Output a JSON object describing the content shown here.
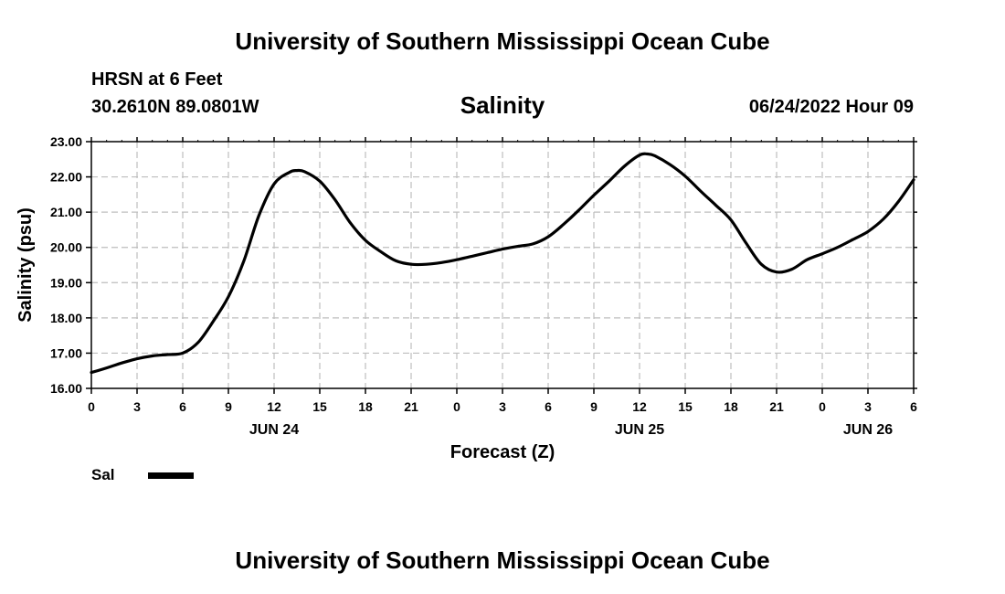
{
  "header": {
    "title": "University of Southern Mississippi Ocean Cube",
    "station": "HRSN at 6 Feet",
    "coords": "30.2610N  89.0801W",
    "chart_title": "Salinity",
    "run_time": "06/24/2022 Hour 09"
  },
  "footer": {
    "title": "University of Southern Mississippi Ocean Cube"
  },
  "legend": {
    "label": "Sal"
  },
  "chart_data": {
    "type": "line",
    "title": "Salinity",
    "xlabel": "Forecast (Z)",
    "ylabel": "Salinity (psu)",
    "ylim": [
      16.0,
      23.0
    ],
    "xlim": [
      0,
      54
    ],
    "x_unit": "hours from 06/24/2022 00Z",
    "x_ticks": [
      0,
      3,
      6,
      9,
      12,
      15,
      18,
      21,
      24,
      27,
      30,
      33,
      36,
      39,
      42,
      45,
      48,
      51,
      54
    ],
    "x_tick_labels": [
      "0",
      "3",
      "6",
      "9",
      "12",
      "15",
      "18",
      "21",
      "0",
      "3",
      "6",
      "9",
      "12",
      "15",
      "18",
      "21",
      "0",
      "3",
      "6"
    ],
    "y_ticks": [
      16.0,
      17.0,
      18.0,
      19.0,
      20.0,
      21.0,
      22.0,
      23.0
    ],
    "y_tick_labels": [
      "16.00",
      "17.00",
      "18.00",
      "19.00",
      "20.00",
      "21.00",
      "22.00",
      "23.00"
    ],
    "day_labels": [
      {
        "x": 12,
        "label": "JUN 24"
      },
      {
        "x": 36,
        "label": "JUN 25"
      },
      {
        "x": 51,
        "label": "JUN 26"
      }
    ],
    "grid": true,
    "line_color": "#000000",
    "series": [
      {
        "name": "Sal",
        "x": [
          0,
          1,
          2,
          3,
          4,
          5,
          6,
          7,
          8,
          9,
          10,
          11,
          12,
          13,
          13.5,
          14,
          15,
          16,
          17,
          18,
          19,
          20,
          21,
          22,
          23,
          24,
          25,
          26,
          27,
          28,
          29,
          30,
          31,
          32,
          33,
          34,
          35,
          36,
          36.5,
          37,
          38,
          39,
          40,
          41,
          42,
          43,
          44,
          45,
          46,
          47,
          48,
          49,
          50,
          51,
          52,
          53,
          54
        ],
        "y": [
          16.45,
          16.58,
          16.72,
          16.84,
          16.92,
          16.96,
          17.0,
          17.3,
          17.9,
          18.6,
          19.6,
          20.9,
          21.8,
          22.13,
          22.18,
          22.15,
          21.88,
          21.35,
          20.7,
          20.2,
          19.88,
          19.62,
          19.52,
          19.52,
          19.57,
          19.65,
          19.75,
          19.85,
          19.95,
          20.03,
          20.1,
          20.3,
          20.65,
          21.05,
          21.48,
          21.88,
          22.3,
          22.62,
          22.65,
          22.6,
          22.35,
          22.02,
          21.6,
          21.2,
          20.78,
          20.12,
          19.52,
          19.3,
          19.38,
          19.65,
          19.82,
          20.0,
          20.22,
          20.45,
          20.8,
          21.3,
          21.92
        ]
      }
    ]
  }
}
